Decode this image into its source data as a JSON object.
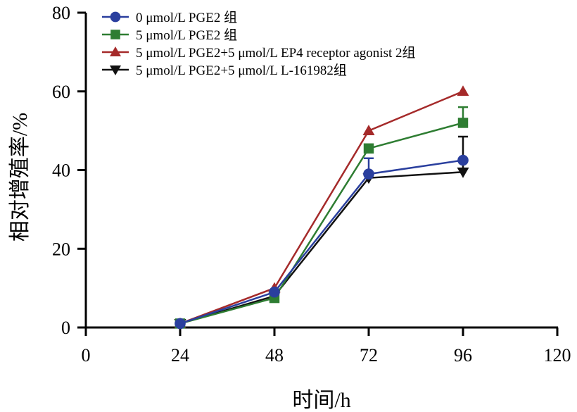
{
  "chart_data": {
    "type": "line",
    "title": "",
    "xlabel": "时间/h",
    "ylabel": "相对增殖率/%",
    "xlim": [
      0,
      120
    ],
    "ylim": [
      0,
      80
    ],
    "xticks": [
      0,
      24,
      48,
      72,
      96,
      120
    ],
    "yticks": [
      0,
      20,
      40,
      60,
      80
    ],
    "x": [
      24,
      48,
      72,
      96
    ],
    "legend_position": "top-left",
    "series": [
      {
        "name": "0 μmol/L PGE2 组",
        "marker": "circle",
        "color": "#2a3f9e",
        "values": [
          1,
          9,
          39,
          42.5
        ],
        "errors": [
          0,
          0,
          4,
          0
        ]
      },
      {
        "name": "5 μmol/L PGE2 组",
        "marker": "square",
        "color": "#2e7d32",
        "values": [
          1,
          7.5,
          45.5,
          52
        ],
        "errors": [
          0,
          0,
          0,
          4
        ]
      },
      {
        "name": "5 μmol/L PGE2+5 μmol/L EP4 receptor agonist 2组",
        "marker": "triangle-up",
        "color": "#a52a2a",
        "values": [
          1,
          10,
          50,
          60
        ],
        "errors": [
          0,
          0,
          0,
          0
        ]
      },
      {
        "name": "5 μmol/L PGE2+5 μmol/L L-161982组",
        "marker": "triangle-down",
        "color": "#111111",
        "values": [
          1,
          8,
          38,
          39.5
        ],
        "errors": [
          0,
          0,
          0,
          9
        ]
      }
    ]
  }
}
